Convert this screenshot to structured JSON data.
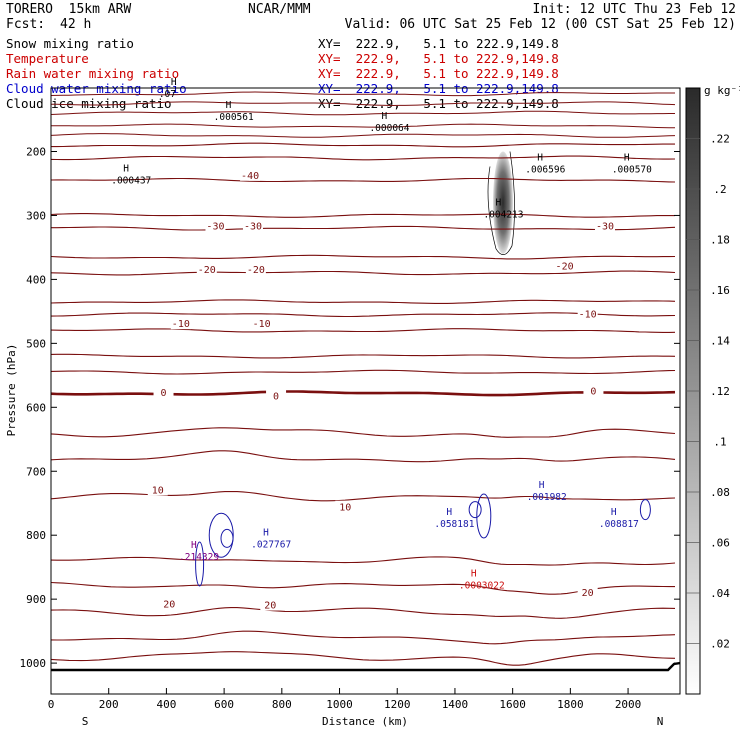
{
  "header": {
    "model": "TORERO  15km ARW",
    "org": "NCAR/MMM",
    "init": "Init: 12 UTC Thu 23 Feb 12",
    "fcst_label": "Fcst:",
    "fcst_value": "42 h",
    "valid": "Valid: 06 UTC Sat 25 Feb 12 (00 CST Sat 25 Feb 12)"
  },
  "legend": [
    {
      "name": "Snow mixing ratio",
      "xy": "",
      "color": "#000000"
    },
    {
      "name": "Temperature",
      "xy": "XY=  222.9,   5.1 to 222.9,149.8",
      "color": "#cc0000"
    },
    {
      "name": "Rain water mixing ratio",
      "xy": "XY=  222.9,   5.1 to 222.9,149.8",
      "color": "#cc0000"
    },
    {
      "name": "Cloud water mixing ratio",
      "xy": "XY=  222.9,   5.1 to 222.9,149.8",
      "color": "#0000cc"
    },
    {
      "name": "Cloud ice mixing ratio",
      "xy": "XY=  222.9,   5.1 to 222.9,149.8",
      "color": "#000000"
    }
  ],
  "legend_xy_top": "XY=  222.9,   5.1 to 222.9,149.8",
  "colors": {
    "temperature": "#7a0f0f",
    "cloud_water": "#1a1aa8",
    "rain": "#cc1111",
    "cloud_ice": "#000000",
    "terrain": "#000000"
  },
  "chart_data": {
    "type": "contour",
    "xlabel": "Distance (km)",
    "ylabel": "Pressure (hPa)",
    "xlim": [
      0,
      2180
    ],
    "ylim": [
      1050,
      100
    ],
    "x_ticks": [
      0,
      200,
      400,
      600,
      800,
      1000,
      1200,
      1400,
      1600,
      1800,
      2000
    ],
    "y_ticks": [
      200,
      300,
      400,
      500,
      600,
      700,
      800,
      900,
      1000
    ],
    "x_end_labels": {
      "left": "S",
      "right": "N"
    },
    "colorbar": {
      "unit": "g kg⁻¹",
      "ticks": [
        ".02",
        ".04",
        ".06",
        ".08",
        ".1",
        ".12",
        ".14",
        ".16",
        ".18",
        ".2",
        ".22"
      ],
      "min": 0,
      "max": 0.24
    },
    "temperature_contours": [
      {
        "label": "-40",
        "p": 190
      },
      {
        "label": "-40",
        "p": 210
      },
      {
        "label": "-40",
        "p": 245
      },
      {
        "label": "-30",
        "p": 300
      },
      {
        "label": "-30",
        "p": 320
      },
      {
        "label": "-20",
        "p": 365
      },
      {
        "label": "-20",
        "p": 390
      },
      {
        "label": "-10",
        "p": 435
      },
      {
        "label": "-10",
        "p": 455
      },
      {
        "label": "-10",
        "p": 480
      },
      {
        "label": "0",
        "p": 520
      },
      {
        "label": "0",
        "p": 545
      },
      {
        "label": "0",
        "p": 578,
        "bold": true
      },
      {
        "label": "10",
        "p": 640
      },
      {
        "label": "10",
        "p": 680
      },
      {
        "label": "10",
        "p": 740
      },
      {
        "label": "20",
        "p": 840
      },
      {
        "label": "20",
        "p": 880
      },
      {
        "label": "20",
        "p": 920
      },
      {
        "label": "20",
        "p": 960
      },
      {
        "label": "",
        "p": 990
      }
    ],
    "top_contours": [
      {
        "p": 110
      },
      {
        "p": 125
      },
      {
        "p": 140
      },
      {
        "p": 160
      },
      {
        "p": 175
      }
    ],
    "contour_labels": [
      {
        "text": "-40",
        "x": 690,
        "p": 238
      },
      {
        "text": "-30",
        "x": 570,
        "p": 317
      },
      {
        "text": "-30",
        "x": 700,
        "p": 317
      },
      {
        "text": "-30",
        "x": 1920,
        "p": 317
      },
      {
        "text": "-20",
        "x": 540,
        "p": 385
      },
      {
        "text": "-20",
        "x": 710,
        "p": 385
      },
      {
        "text": "-20",
        "x": 1780,
        "p": 380
      },
      {
        "text": "-10",
        "x": 450,
        "p": 470
      },
      {
        "text": "-10",
        "x": 730,
        "p": 470
      },
      {
        "text": "-10",
        "x": 1860,
        "p": 455
      },
      {
        "text": "0",
        "x": 390,
        "p": 578
      },
      {
        "text": "0",
        "x": 780,
        "p": 583
      },
      {
        "text": "0",
        "x": 1880,
        "p": 575
      },
      {
        "text": "10",
        "x": 370,
        "p": 730
      },
      {
        "text": "10",
        "x": 1020,
        "p": 757
      },
      {
        "text": "20",
        "x": 410,
        "p": 908
      },
      {
        "text": "20",
        "x": 760,
        "p": 910
      },
      {
        "text": "20",
        "x": 1860,
        "p": 890
      }
    ],
    "maxima": [
      {
        "text": ".000561",
        "x": 640,
        "p": 148,
        "color": "#000000"
      },
      {
        "text": ".000064",
        "x": 1180,
        "p": 165,
        "color": "#000000"
      },
      {
        "text": ".000437",
        "x": 285,
        "p": 247,
        "color": "#000000"
      },
      {
        "text": ".006596",
        "x": 1720,
        "p": 230,
        "color": "#000000"
      },
      {
        "text": ".000570",
        "x": 2020,
        "p": 230,
        "color": "#000000"
      },
      {
        "text": ".004213",
        "x": 1575,
        "p": 300,
        "color": "#000000"
      },
      {
        "text": ".07",
        "x": 450,
        "p": 112,
        "color": "#000000"
      },
      {
        "text": ".001982",
        "x": 1725,
        "p": 742,
        "color": "#1a1aa8"
      },
      {
        "text": ".058181",
        "x": 1405,
        "p": 784,
        "color": "#1a1aa8"
      },
      {
        "text": ".008817",
        "x": 1975,
        "p": 784,
        "color": "#1a1aa8"
      },
      {
        "text": ".027767",
        "x": 770,
        "p": 816,
        "color": "#1a1aa8"
      },
      {
        "text": ".214329",
        "x": 520,
        "p": 836,
        "color": "#800080"
      },
      {
        "text": ".0003022",
        "x": 1490,
        "p": 880,
        "color": "#cc1111"
      }
    ],
    "snow_plume": {
      "x_center": 1570,
      "p_top": 200,
      "p_bottom": 360,
      "max": 0.22
    }
  }
}
